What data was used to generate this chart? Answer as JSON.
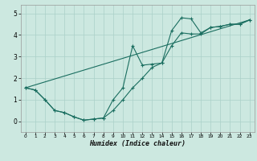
{
  "title": "",
  "xlabel": "Humidex (Indice chaleur)",
  "bg_color": "#cce8e0",
  "grid_color": "#aad0c8",
  "line_color": "#1a6e60",
  "xlim": [
    -0.5,
    23.5
  ],
  "ylim": [
    -0.5,
    5.4
  ],
  "xticks": [
    0,
    1,
    2,
    3,
    4,
    5,
    6,
    7,
    8,
    9,
    10,
    11,
    12,
    13,
    14,
    15,
    16,
    17,
    18,
    19,
    20,
    21,
    22,
    23
  ],
  "yticks": [
    0,
    1,
    2,
    3,
    4,
    5
  ],
  "curve1_x": [
    0,
    1,
    2,
    3,
    4,
    5,
    6,
    7,
    8,
    9,
    10,
    11,
    12,
    13,
    14,
    15,
    16,
    17,
    18,
    19,
    20,
    21,
    22,
    23
  ],
  "curve1_y": [
    1.55,
    1.45,
    1.0,
    0.5,
    0.4,
    0.2,
    0.05,
    0.1,
    0.15,
    0.5,
    1.0,
    1.55,
    2.0,
    2.5,
    2.7,
    3.5,
    4.1,
    4.05,
    4.05,
    4.35,
    4.4,
    4.5,
    4.5,
    4.7
  ],
  "curve2_x": [
    0,
    1,
    2,
    3,
    4,
    5,
    6,
    7,
    8,
    9,
    10,
    11,
    12,
    13,
    14,
    15,
    16,
    17,
    18,
    19,
    20,
    21,
    22,
    23
  ],
  "curve2_y": [
    1.55,
    1.45,
    1.0,
    0.5,
    0.4,
    0.2,
    0.05,
    0.1,
    0.15,
    1.0,
    1.55,
    3.5,
    2.6,
    2.65,
    2.7,
    4.2,
    4.8,
    4.75,
    4.1,
    4.35,
    4.4,
    4.5,
    4.5,
    4.7
  ],
  "curve3_x": [
    0,
    23
  ],
  "curve3_y": [
    1.55,
    4.7
  ]
}
